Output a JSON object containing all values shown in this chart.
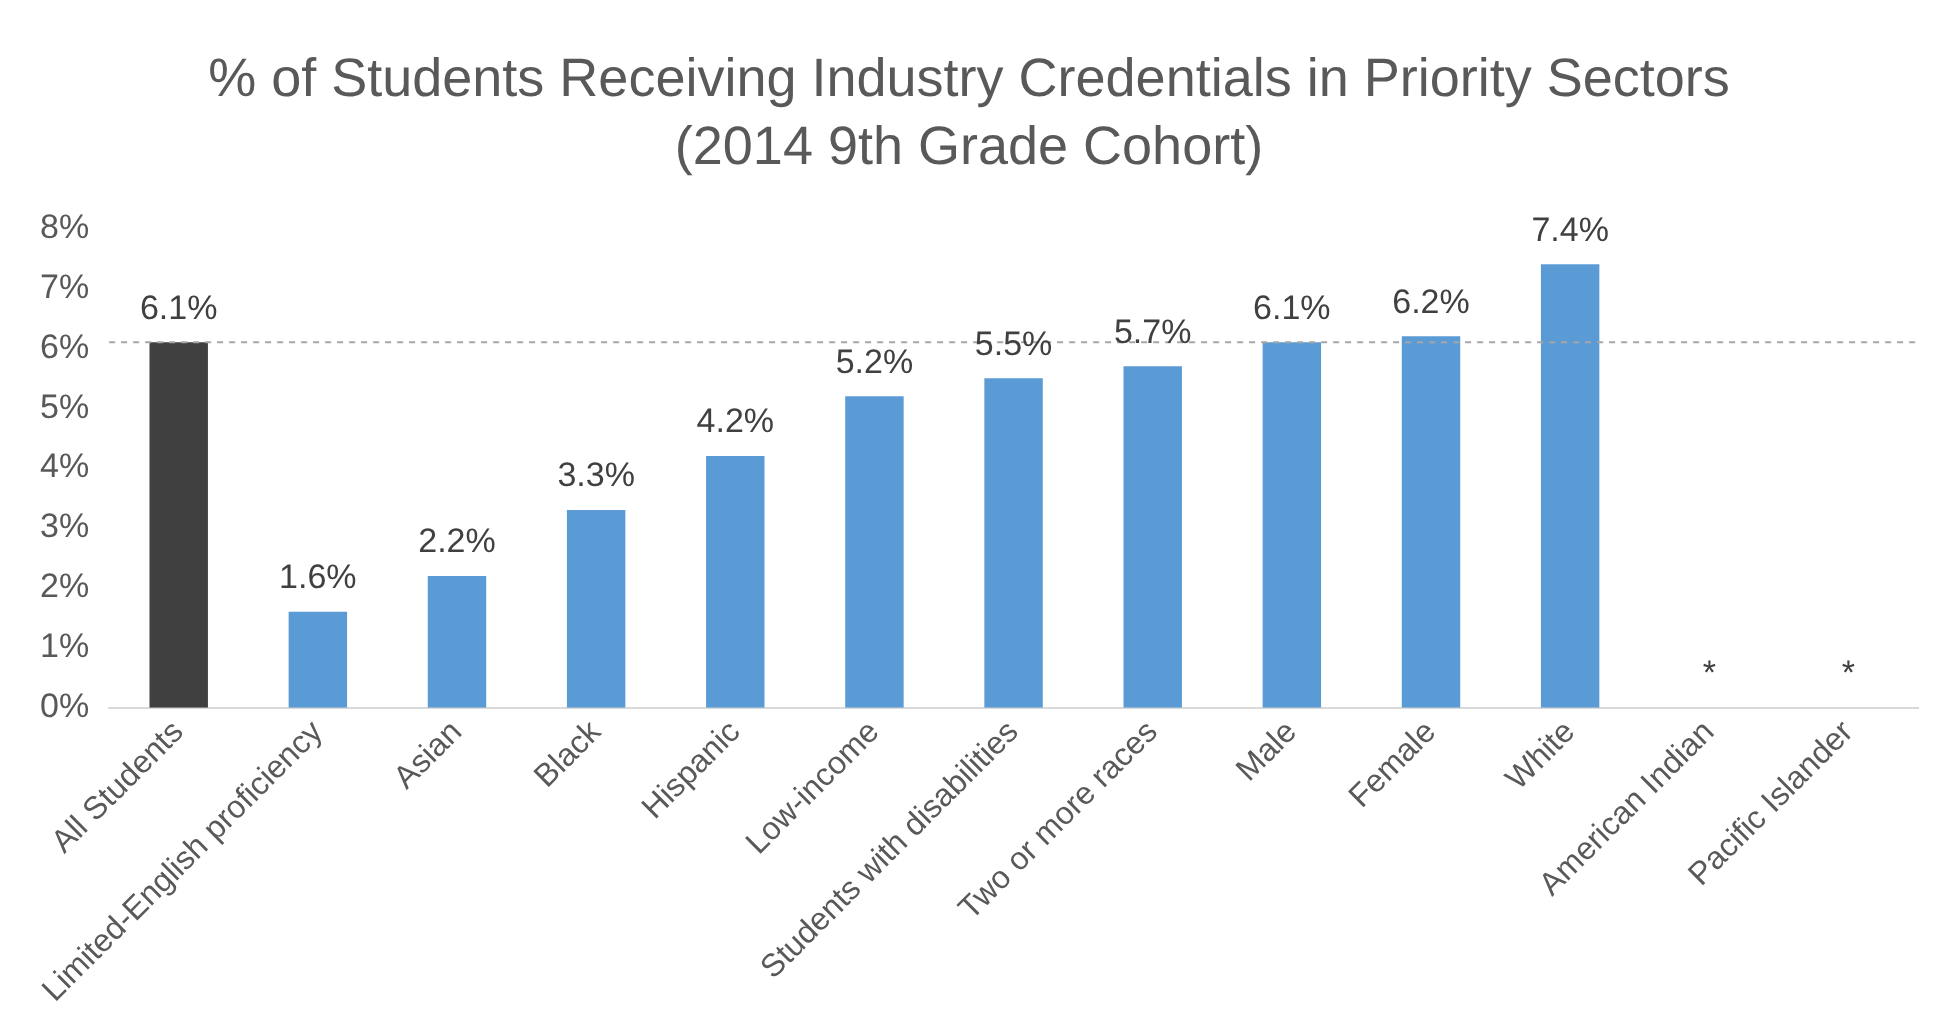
{
  "chart_data": {
    "type": "bar",
    "title": "% of Students Receiving Industry Credentials in Priority Sectors (2014 9th Grade Cohort)",
    "categories": [
      "All Students",
      "Limited-English proficiency",
      "Asian",
      "Black",
      "Hispanic",
      "Low-income",
      "Students with disabilities",
      "Two or more races",
      "Male",
      "Female",
      "White",
      "American Indian",
      "Pacific Islander"
    ],
    "values": [
      6.1,
      1.6,
      2.2,
      3.3,
      4.2,
      5.2,
      5.5,
      5.7,
      6.1,
      6.2,
      7.4,
      null,
      null
    ],
    "colors": [
      "#404040",
      "#5b9bd5",
      "#5b9bd5",
      "#5b9bd5",
      "#5b9bd5",
      "#5b9bd5",
      "#5b9bd5",
      "#5b9bd5",
      "#5b9bd5",
      "#5b9bd5",
      "#5b9bd5",
      "#5b9bd5",
      "#5b9bd5"
    ],
    "value_labels": [
      "6.1%",
      "1.6%",
      "2.2%",
      "3.3%",
      "4.2%",
      "5.2%",
      "5.5%",
      "5.7%",
      "6.1%",
      "6.2%",
      "7.4%",
      "*",
      "*"
    ],
    "ylim": [
      0,
      8
    ],
    "yticks": [
      {
        "value": 0,
        "label": "0%"
      },
      {
        "value": 1,
        "label": "1%"
      },
      {
        "value": 2,
        "label": "2%"
      },
      {
        "value": 3,
        "label": "3%"
      },
      {
        "value": 4,
        "label": "4%"
      },
      {
        "value": 5,
        "label": "5%"
      },
      {
        "value": 6,
        "label": "6%"
      },
      {
        "value": 7,
        "label": "7%"
      },
      {
        "value": 8,
        "label": "8%"
      }
    ],
    "ref_lines": [
      {
        "axis": "y",
        "value": 6.1,
        "color": "#a6a6a6",
        "line_style": "dashed"
      }
    ],
    "grid": false,
    "legend": false
  }
}
